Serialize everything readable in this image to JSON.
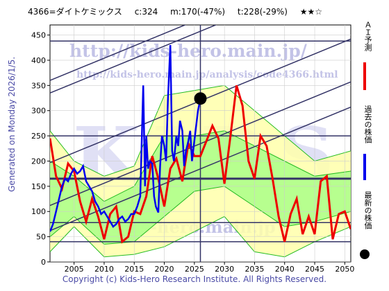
{
  "title": {
    "code": "4366=ダイトケミックス",
    "current": "c:324",
    "median": "m:170(-47%)",
    "target": "t:228(-29%)",
    "stars": "★★☆"
  },
  "generated": "Generated on Monday 2026/1/5.",
  "watermark_url": "http://kids-hero.main.jp/",
  "watermark_url2": "http://kids-hero.main.jp/analysis/code4366.html",
  "watermark_big": "KIDS",
  "watermark_bottom": "kids-hero.main.jp",
  "copyright": "Copyright (c) Kids-Hero Research Institute. All Rights Reserved.",
  "legend": {
    "ai": "ＡＩ予測",
    "past": "過去の株価",
    "latest": "最新の株価"
  },
  "colors": {
    "ai": "#ee0000",
    "past": "#0000ee",
    "band_outer": "#ffffaa",
    "band_inner": "#aaff88",
    "band_line": "#22bb22",
    "channel": "#333366",
    "latest": "#000000"
  },
  "chart_data": {
    "type": "line",
    "x_ticks": [
      2005,
      2010,
      2015,
      2020,
      2025,
      2030,
      2035,
      2040,
      2045,
      2050
    ],
    "y_ticks": [
      0,
      50,
      100,
      150,
      200,
      250,
      300,
      350,
      400,
      450
    ],
    "xlim": [
      2001,
      2051
    ],
    "ylim": [
      0,
      470
    ],
    "latest_point": {
      "x": 2026.0,
      "y": 324
    },
    "latest_value_line_x": 2026.0,
    "horizontal_levels": [
      438,
      250,
      165,
      78,
      40
    ],
    "channel_slopes_per_year": 4.9,
    "channel_offsets_at_2001": [
      360,
      335,
      197,
      112,
      62
    ],
    "past_price": {
      "name": "過去の株価",
      "x": [
        2001.0,
        2001.5,
        2002.0,
        2002.5,
        2003.0,
        2003.5,
        2004.0,
        2004.5,
        2005.0,
        2005.5,
        2006.0,
        2006.5,
        2007.0,
        2007.5,
        2008.0,
        2008.5,
        2009.0,
        2009.5,
        2010.0,
        2010.5,
        2011.0,
        2011.5,
        2012.0,
        2012.5,
        2013.0,
        2013.5,
        2014.0,
        2014.5,
        2015.0,
        2015.5,
        2016.0,
        2016.5,
        2016.8,
        2017.0,
        2017.3,
        2017.6,
        2018.0,
        2018.3,
        2018.6,
        2019.0,
        2019.3,
        2019.6,
        2020.0,
        2020.3,
        2020.6,
        2021.0,
        2021.3,
        2021.6,
        2022.0,
        2022.3,
        2022.6,
        2023.0,
        2023.3,
        2023.6,
        2024.0,
        2024.3,
        2024.6,
        2025.0,
        2025.3,
        2025.6,
        2026.0
      ],
      "y": [
        60,
        75,
        100,
        125,
        150,
        165,
        160,
        175,
        185,
        175,
        180,
        190,
        160,
        150,
        140,
        120,
        110,
        95,
        100,
        90,
        80,
        70,
        75,
        85,
        90,
        80,
        85,
        95,
        95,
        110,
        130,
        350,
        150,
        250,
        185,
        200,
        195,
        130,
        110,
        98,
        190,
        250,
        230,
        200,
        320,
        430,
        220,
        200,
        250,
        230,
        280,
        260,
        190,
        220,
        240,
        260,
        200,
        240,
        270,
        300,
        324
      ]
    },
    "ai_forecast": {
      "name": "ＡＩ予測",
      "x": [
        2001,
        2002,
        2003,
        2004,
        2005,
        2006,
        2007,
        2008,
        2009,
        2010,
        2011,
        2012,
        2013,
        2014,
        2015,
        2016,
        2017,
        2018,
        2019,
        2020,
        2021,
        2022,
        2023,
        2024,
        2025,
        2026,
        2027,
        2028,
        2029,
        2030,
        2031,
        2032,
        2033,
        2034,
        2035,
        2036,
        2037,
        2038,
        2039,
        2040,
        2041,
        2042,
        2043,
        2044,
        2045,
        2046,
        2047,
        2048,
        2049,
        2050,
        2051
      ],
      "y": [
        245,
        170,
        145,
        195,
        180,
        120,
        80,
        125,
        90,
        45,
        95,
        110,
        40,
        50,
        100,
        95,
        130,
        210,
        165,
        110,
        185,
        205,
        160,
        235,
        210,
        210,
        240,
        270,
        245,
        155,
        250,
        350,
        310,
        200,
        165,
        250,
        230,
        165,
        90,
        40,
        95,
        125,
        55,
        90,
        55,
        160,
        170,
        45,
        95,
        100,
        65
      ]
    },
    "band": {
      "x": [
        2001,
        2005,
        2010,
        2015,
        2020,
        2025,
        2030,
        2035,
        2040,
        2045,
        2051
      ],
      "outer_low": [
        20,
        70,
        10,
        15,
        30,
        60,
        90,
        20,
        10,
        40,
        70
      ],
      "outer_high": [
        260,
        200,
        170,
        190,
        330,
        340,
        350,
        300,
        250,
        200,
        220
      ],
      "inner_low": [
        50,
        90,
        35,
        40,
        90,
        140,
        150,
        110,
        70,
        80,
        100
      ],
      "inner_high": [
        200,
        170,
        120,
        150,
        250,
        250,
        260,
        230,
        200,
        170,
        180
      ]
    }
  }
}
